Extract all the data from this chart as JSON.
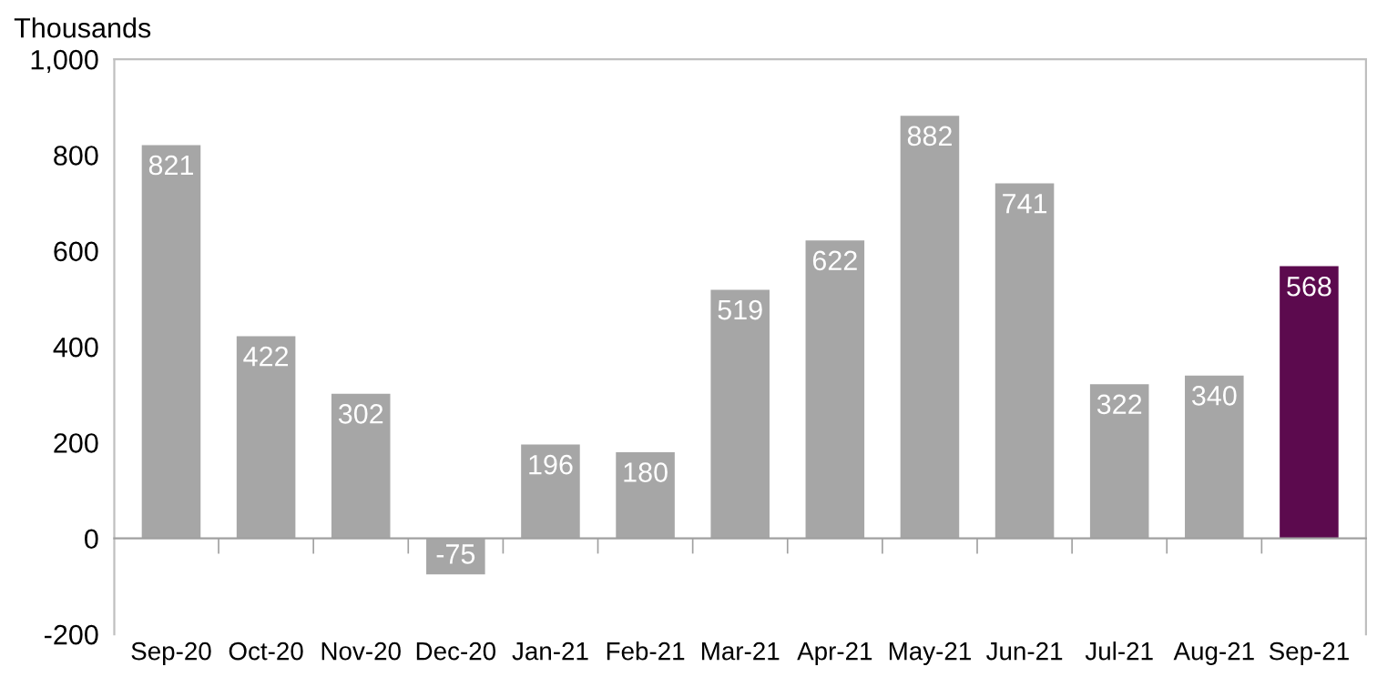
{
  "chart_data": {
    "type": "bar",
    "ylabel": "Thousands",
    "categories": [
      "Sep-20",
      "Oct-20",
      "Nov-20",
      "Dec-20",
      "Jan-21",
      "Feb-21",
      "Mar-21",
      "Apr-21",
      "May-21",
      "Jun-21",
      "Jul-21",
      "Aug-21",
      "Sep-21"
    ],
    "values": [
      821,
      422,
      302,
      -75,
      196,
      180,
      519,
      622,
      882,
      741,
      322,
      340,
      568
    ],
    "colors": [
      "#a6a6a6",
      "#a6a6a6",
      "#a6a6a6",
      "#a6a6a6",
      "#a6a6a6",
      "#a6a6a6",
      "#a6a6a6",
      "#a6a6a6",
      "#a6a6a6",
      "#a6a6a6",
      "#a6a6a6",
      "#a6a6a6",
      "#5c0a4e"
    ],
    "ylim": [
      -200,
      1000
    ],
    "yticks": [
      -200,
      0,
      200,
      400,
      600,
      800,
      {
        "value": 1000,
        "label": "1,000"
      }
    ],
    "data_labels": true,
    "legend": false
  }
}
